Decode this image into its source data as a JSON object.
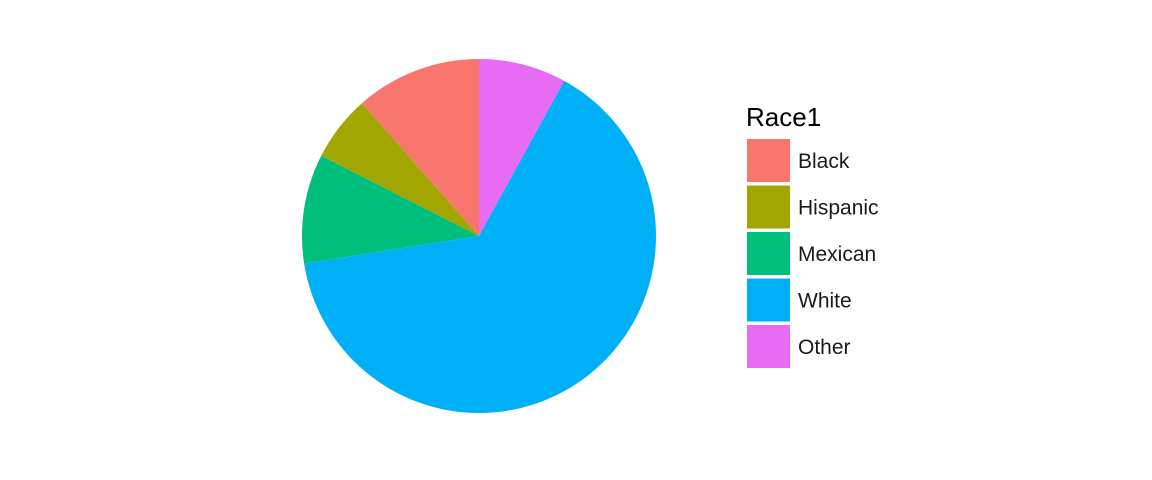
{
  "chart_data": {
    "type": "pie",
    "legend_title": "Race1",
    "legend_position": "right",
    "start_angle": "12 o'clock",
    "direction": "clockwise",
    "slices": [
      {
        "label": "Other",
        "value": 8.0,
        "color": "#E76BF3"
      },
      {
        "label": "White",
        "value": 64.5,
        "color": "#00B0F6"
      },
      {
        "label": "Mexican",
        "value": 10.0,
        "color": "#00BF7D"
      },
      {
        "label": "Hispanic",
        "value": 6.0,
        "color": "#A3A500"
      },
      {
        "label": "Black",
        "value": 11.5,
        "color": "#F8766D"
      }
    ],
    "legend_order": [
      "Black",
      "Hispanic",
      "Mexican",
      "White",
      "Other"
    ]
  }
}
